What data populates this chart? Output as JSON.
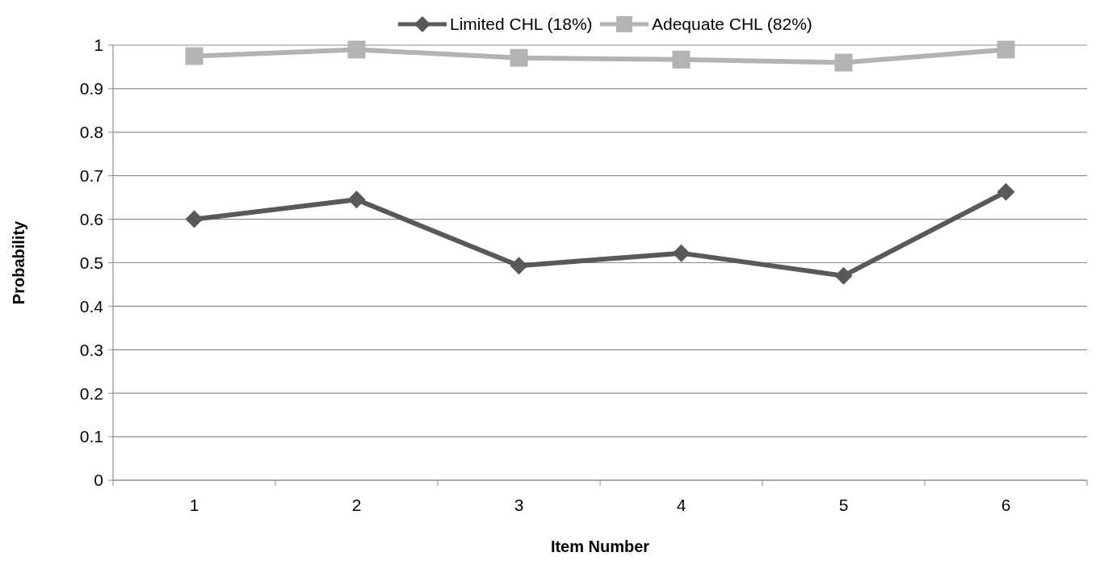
{
  "chart_data": {
    "type": "line",
    "xlabel": "Item Number",
    "ylabel": "Probability",
    "categories": [
      "1",
      "2",
      "3",
      "4",
      "5",
      "6"
    ],
    "series": [
      {
        "name": "Limited CHL (18%)",
        "color": "#595959",
        "marker": "diamond",
        "values": [
          0.6,
          0.645,
          0.493,
          0.522,
          0.47,
          0.663
        ]
      },
      {
        "name": "Adequate CHL (82%)",
        "color": "#b3b3b3",
        "marker": "square",
        "values": [
          0.975,
          0.99,
          0.971,
          0.967,
          0.96,
          0.99
        ]
      }
    ],
    "ylim": [
      0,
      1
    ],
    "yticks": [
      0,
      0.1,
      0.2,
      0.3,
      0.4,
      0.5,
      0.6,
      0.7,
      0.8,
      0.9,
      1
    ],
    "grid": "y",
    "legend": "top",
    "line_style": "solid"
  }
}
